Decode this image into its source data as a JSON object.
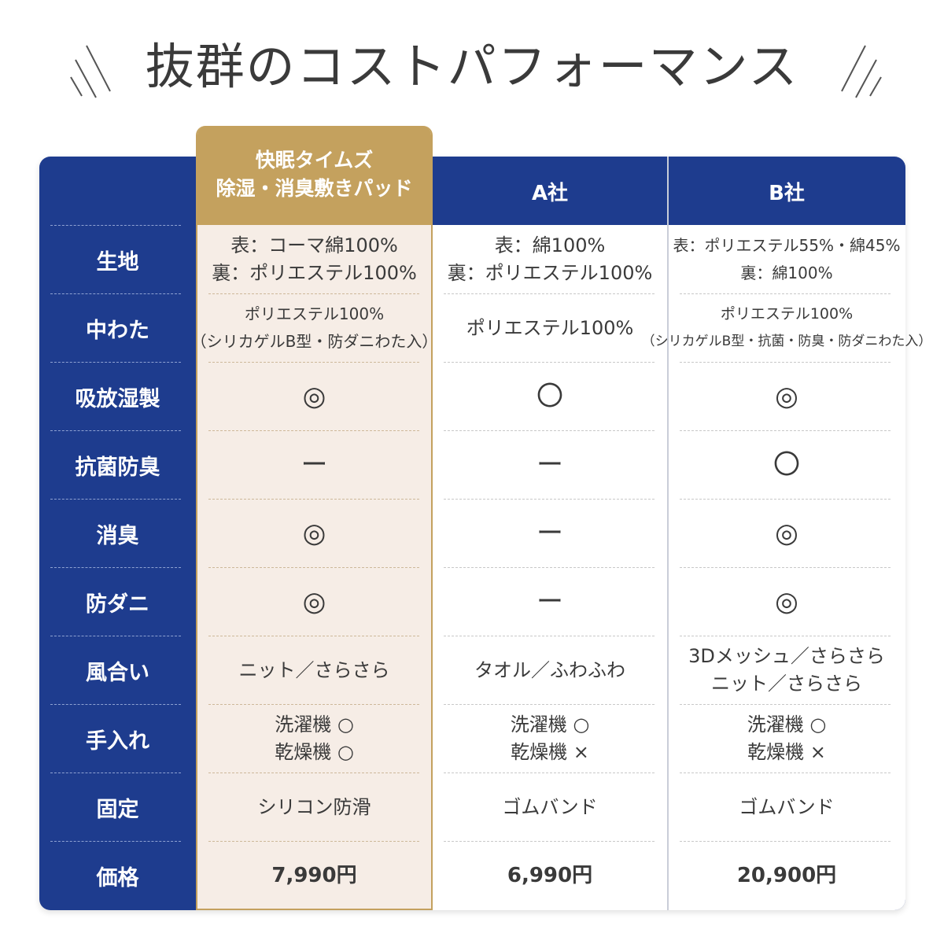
{
  "title": "抜群のコストパフォーマンス",
  "columns": {
    "featured": [
      "快眠タイムズ",
      "除湿・消臭敷きパッド"
    ],
    "a": "A社",
    "b": "B社"
  },
  "rows": [
    {
      "label": "生地",
      "c1": [
        "表：コーマ綿100%",
        "裏：ポリエステル100%"
      ],
      "c2": [
        "表：綿100%",
        "裏：ポリエステル100%"
      ],
      "c3": [
        "表：ポリエステル55%・綿45%",
        "裏：綿100%"
      ]
    },
    {
      "label": "中わた",
      "c1": [
        "ポリエステル100%",
        "（シリカゲルB型・防ダニわた入）"
      ],
      "c2": [
        "ポリエステル100%"
      ],
      "c3": [
        "ポリエステル100%",
        "（シリカゲルB型・抗菌・防臭・防ダニわた入）"
      ]
    },
    {
      "label": "吸放湿製",
      "c1": [
        "◎"
      ],
      "c2": [
        "〇"
      ],
      "c3": [
        "◎"
      ]
    },
    {
      "label": "抗菌防臭",
      "c1": [
        "ー"
      ],
      "c2": [
        "ー"
      ],
      "c3": [
        "〇"
      ]
    },
    {
      "label": "消臭",
      "c1": [
        "◎"
      ],
      "c2": [
        "ー"
      ],
      "c3": [
        "◎"
      ]
    },
    {
      "label": "防ダニ",
      "c1": [
        "◎"
      ],
      "c2": [
        "ー"
      ],
      "c3": [
        "◎"
      ]
    },
    {
      "label": "風合い",
      "c1": [
        "ニット／さらさら"
      ],
      "c2": [
        "タオル／ふわふわ"
      ],
      "c3": [
        "3Dメッシュ／さらさら",
        "ニット／さらさら"
      ]
    },
    {
      "label": "手入れ",
      "c1": [
        "洗濯機 ○",
        "乾燥機 ○"
      ],
      "c2": [
        "洗濯機 ○",
        "乾燥機 ×"
      ],
      "c3": [
        "洗濯機 ○",
        "乾燥機 ×"
      ]
    },
    {
      "label": "固定",
      "c1": [
        "シリコン防滑"
      ],
      "c2": [
        "ゴムバンド"
      ],
      "c3": [
        "ゴムバンド"
      ]
    },
    {
      "label": "価格",
      "c1": [
        "7,990円"
      ],
      "c2": [
        "6,990円"
      ],
      "c3": [
        "20,900円"
      ]
    }
  ],
  "colors": {
    "navy": "#1e3c8e",
    "gold": "#c4a15e",
    "featured_bg": "#f6ede6",
    "text": "#3a3a3a"
  }
}
